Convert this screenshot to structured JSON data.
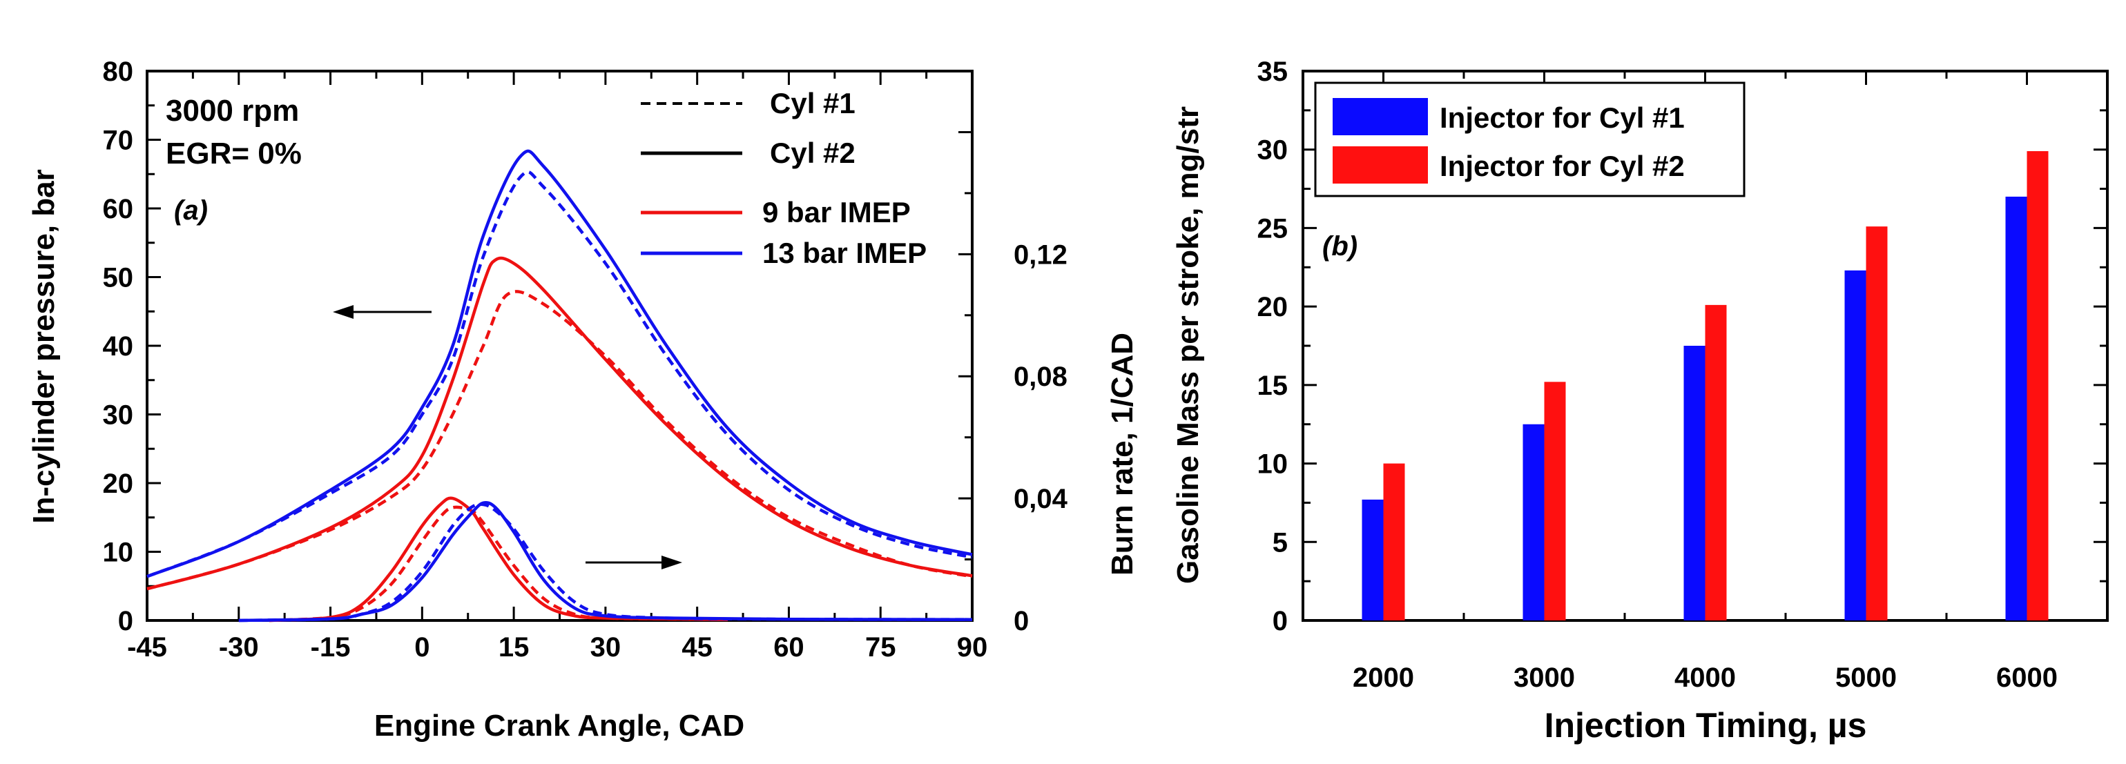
{
  "chart_data": [
    {
      "type": "line",
      "panel_label": "(a)",
      "annotations": [
        "3000 rpm",
        "EGR= 0%"
      ],
      "xlabel": "Engine Crank Angle, CAD",
      "ylabel": "In-cylinder pressure, bar",
      "y2label": "Burn rate, 1/CAD",
      "xlim": [
        -45,
        90
      ],
      "ylim": [
        0,
        80
      ],
      "y2lim": [
        0,
        0.18
      ],
      "x_ticks": [
        "-45",
        "-30",
        "-15",
        "0",
        "15",
        "30",
        "45",
        "60",
        "75",
        "90"
      ],
      "x_tick_values": [
        -45,
        -30,
        -15,
        0,
        15,
        30,
        45,
        60,
        75,
        90
      ],
      "y_ticks": [
        "0",
        "10",
        "20",
        "30",
        "40",
        "50",
        "60",
        "70",
        "80"
      ],
      "y_tick_values": [
        0,
        10,
        20,
        30,
        40,
        50,
        60,
        70,
        80
      ],
      "y2_ticks": [
        "0",
        "0,04",
        "0,08",
        "0,12"
      ],
      "y2_tick_values": [
        0,
        0.04,
        0.08,
        0.12
      ],
      "legend": {
        "placement": "top-right",
        "line_styles": [
          {
            "label": "Cyl #1",
            "style": "dashed"
          },
          {
            "label": "Cyl #2",
            "style": "solid"
          }
        ],
        "colors": [
          {
            "label": "9 bar IMEP",
            "color": "#ee1111"
          },
          {
            "label": "13 bar IMEP",
            "color": "#1111ee"
          }
        ]
      },
      "series": [
        {
          "load": "9 bar IMEP",
          "cylinder": "Cyl #1",
          "quantity": "pressure",
          "color": "#ee1111",
          "style": "dashed",
          "x": [
            -45,
            -30,
            -15,
            -5,
            0,
            5,
            10,
            14,
            20,
            30,
            40,
            50,
            60,
            70,
            80,
            90
          ],
          "y": [
            4.6,
            8.2,
            13.2,
            18,
            22,
            30,
            40,
            47.5,
            46,
            38.5,
            29,
            21,
            15,
            11,
            8,
            6.4
          ]
        },
        {
          "load": "9 bar IMEP",
          "cylinder": "Cyl #2",
          "quantity": "pressure",
          "color": "#ee1111",
          "style": "solid",
          "x": [
            -45,
            -30,
            -15,
            -5,
            0,
            5,
            10,
            12,
            15,
            20,
            30,
            40,
            50,
            60,
            70,
            80,
            90
          ],
          "y": [
            4.6,
            8.2,
            13.5,
            19,
            24,
            35,
            49,
            52.5,
            52,
            48,
            38,
            28.5,
            20.5,
            14.5,
            10.5,
            8,
            6.5
          ]
        },
        {
          "load": "13 bar IMEP",
          "cylinder": "Cyl #1",
          "quantity": "pressure",
          "color": "#1111ee",
          "style": "dashed",
          "x": [
            -45,
            -30,
            -15,
            -5,
            0,
            5,
            10,
            16,
            20,
            30,
            40,
            50,
            60,
            70,
            80,
            90
          ],
          "y": [
            6.4,
            11.5,
            18.5,
            24,
            30,
            38,
            53,
            64.5,
            63,
            52,
            38.5,
            27,
            19,
            14,
            11,
            9.2
          ]
        },
        {
          "load": "13 bar IMEP",
          "cylinder": "Cyl #2",
          "quantity": "pressure",
          "color": "#1111ee",
          "style": "solid",
          "x": [
            -45,
            -30,
            -15,
            -5,
            0,
            5,
            10,
            16,
            20,
            30,
            40,
            50,
            60,
            70,
            80,
            90
          ],
          "y": [
            6.4,
            11.5,
            19,
            25,
            31,
            40,
            56,
            67.5,
            66,
            54,
            40,
            28,
            20,
            14.5,
            11.5,
            9.6
          ]
        },
        {
          "load": "9 bar IMEP",
          "cylinder": "Cyl #1",
          "quantity": "burn rate",
          "color": "#ee1111",
          "style": "dashed",
          "x": [
            -25,
            -15,
            -10,
            -5,
            0,
            3,
            5,
            8,
            10,
            15,
            20,
            25,
            30,
            40,
            50
          ],
          "y": [
            0,
            0.001,
            0.004,
            0.012,
            0.026,
            0.034,
            0.037,
            0.036,
            0.032,
            0.018,
            0.007,
            0.002,
            0.0008,
            0.0005,
            0.0003
          ]
        },
        {
          "load": "9 bar IMEP",
          "cylinder": "Cyl #2",
          "quantity": "burn rate",
          "color": "#ee1111",
          "style": "solid",
          "x": [
            -25,
            -15,
            -10,
            -5,
            0,
            3,
            5,
            8,
            10,
            15,
            20,
            25,
            30,
            40,
            50
          ],
          "y": [
            0,
            0.001,
            0.005,
            0.016,
            0.031,
            0.038,
            0.04,
            0.036,
            0.03,
            0.015,
            0.005,
            0.0015,
            0.0008,
            0.0005,
            0.0003
          ]
        },
        {
          "load": "13 bar IMEP",
          "cylinder": "Cyl #1",
          "quantity": "burn rate",
          "color": "#1111ee",
          "style": "dashed",
          "x": [
            -30,
            -15,
            -10,
            -5,
            0,
            5,
            8,
            10,
            12,
            15,
            20,
            25,
            30,
            40,
            60,
            90
          ],
          "y": [
            0,
            0.0005,
            0.002,
            0.006,
            0.016,
            0.031,
            0.037,
            0.038,
            0.036,
            0.03,
            0.016,
            0.006,
            0.002,
            0.0008,
            0.0004,
            0.0003
          ]
        },
        {
          "load": "13 bar IMEP",
          "cylinder": "Cyl #2",
          "quantity": "burn rate",
          "color": "#1111ee",
          "style": "solid",
          "x": [
            -30,
            -15,
            -10,
            -5,
            0,
            5,
            8,
            10,
            12,
            15,
            20,
            25,
            30,
            40,
            60,
            90
          ],
          "y": [
            0,
            0.0005,
            0.002,
            0.005,
            0.014,
            0.028,
            0.035,
            0.0385,
            0.037,
            0.029,
            0.013,
            0.004,
            0.0015,
            0.0008,
            0.0004,
            0.0003
          ]
        }
      ]
    },
    {
      "type": "bar",
      "panel_label": "(b)",
      "xlabel": "Injection Timing, µs",
      "ylabel": "Gasoline Mass per stroke, mg/str",
      "categories": [
        "2000",
        "3000",
        "4000",
        "5000",
        "6000"
      ],
      "ylim": [
        0,
        35
      ],
      "y_ticks": [
        "0",
        "5",
        "10",
        "15",
        "20",
        "25",
        "30",
        "35"
      ],
      "y_tick_values": [
        0,
        5,
        10,
        15,
        20,
        25,
        30,
        35
      ],
      "legend": {
        "placement": "top-left"
      },
      "series": [
        {
          "name": "Injector for Cyl #1",
          "color": "#0a0aff",
          "values": [
            7.7,
            12.5,
            17.5,
            22.3,
            27.0
          ]
        },
        {
          "name": "Injector for Cyl #2",
          "color": "#ff1010",
          "values": [
            10.0,
            15.2,
            20.1,
            25.1,
            29.9
          ]
        }
      ]
    }
  ]
}
